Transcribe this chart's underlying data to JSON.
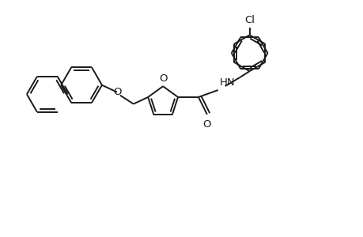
{
  "background_color": "#ffffff",
  "line_color": "#1a1a1a",
  "line_width": 1.4,
  "figure_size": [
    4.6,
    3.0
  ],
  "dpi": 100,
  "xlim": [
    0,
    9.2
  ],
  "ylim": [
    0,
    6.0
  ]
}
